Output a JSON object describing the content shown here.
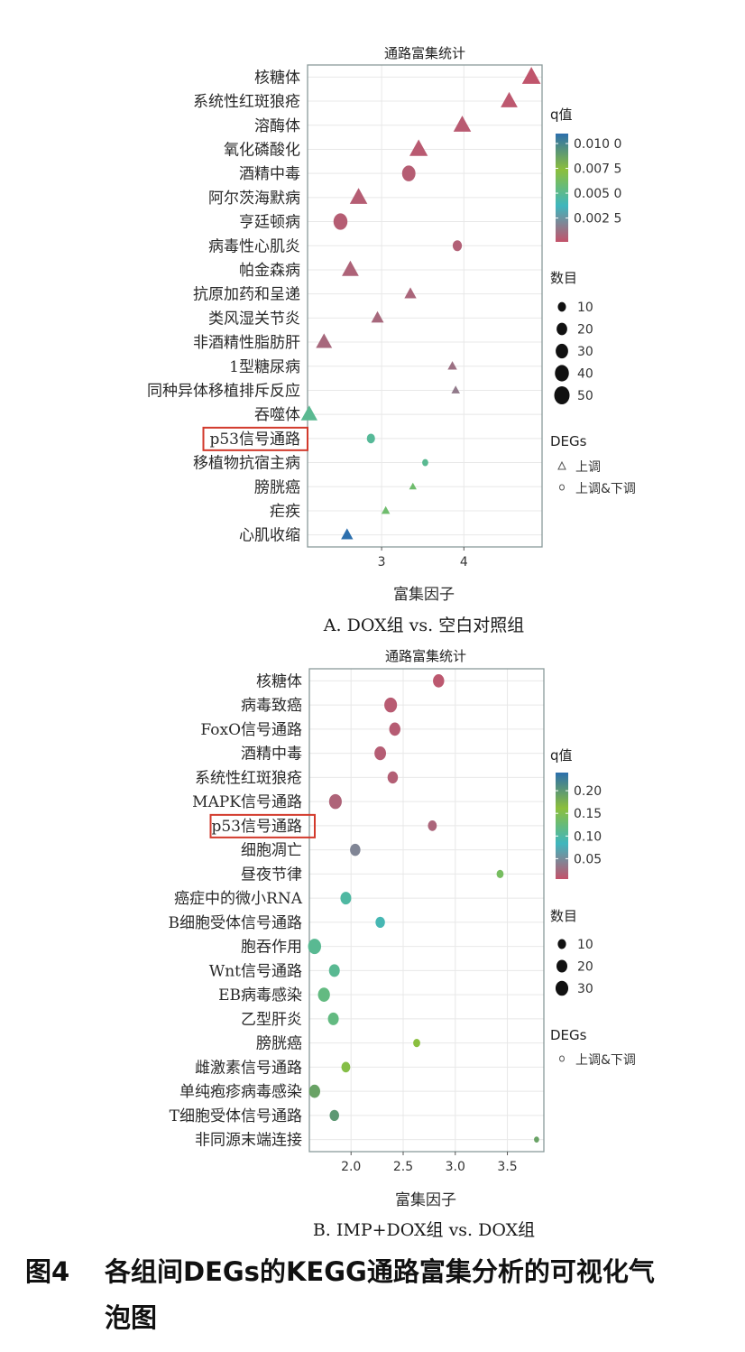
{
  "chart_data": [
    {
      "type": "scatter",
      "title": "通路富集统计",
      "xlabel": "富集因子",
      "caption": "A. DOX组 vs. 空白对照组",
      "xlim": [
        2.1,
        4.95
      ],
      "xticks": [
        3,
        4
      ],
      "categories": [
        "核糖体",
        "系统性红斑狼疮",
        "溶酶体",
        "氧化磷酸化",
        "酒精中毒",
        "阿尔茨海默病",
        "亨廷顿病",
        "病毒性心肌炎",
        "帕金森病",
        "抗原加药和呈递",
        "类风湿关节炎",
        "非酒精性脂肪肝",
        "1型糖尿病",
        "同种异体移植排斥反应",
        "吞噬体",
        "p53信号通路",
        "移植物抗宿主病",
        "膀胱癌",
        "疟疾",
        "心肌收缩"
      ],
      "points": [
        {
          "y": "核糖体",
          "x": 4.82,
          "count": 48,
          "q": 0.0002,
          "degs": "up"
        },
        {
          "y": "系统性红斑狼疮",
          "x": 4.55,
          "count": 38,
          "q": 0.0003,
          "degs": "up"
        },
        {
          "y": "溶酶体",
          "x": 3.98,
          "count": 42,
          "q": 0.0004,
          "degs": "up"
        },
        {
          "y": "氧化磷酸化",
          "x": 3.45,
          "count": 46,
          "q": 0.0004,
          "degs": "up"
        },
        {
          "y": "酒精中毒",
          "x": 3.33,
          "count": 36,
          "q": 0.0005,
          "degs": "updown"
        },
        {
          "y": "阿尔茨海默病",
          "x": 2.72,
          "count": 42,
          "q": 0.0005,
          "degs": "up"
        },
        {
          "y": "亨廷顿病",
          "x": 2.5,
          "count": 40,
          "q": 0.0005,
          "degs": "updown"
        },
        {
          "y": "病毒性心肌炎",
          "x": 3.92,
          "count": 14,
          "q": 0.0006,
          "degs": "updown"
        },
        {
          "y": "帕金森病",
          "x": 2.62,
          "count": 38,
          "q": 0.0007,
          "degs": "up"
        },
        {
          "y": "抗原加药和呈递",
          "x": 3.35,
          "count": 16,
          "q": 0.0008,
          "degs": "up"
        },
        {
          "y": "类风湿关节炎",
          "x": 2.95,
          "count": 18,
          "q": 0.0009,
          "degs": "up"
        },
        {
          "y": "非酒精性脂肪肝",
          "x": 2.3,
          "count": 34,
          "q": 0.0009,
          "degs": "up"
        },
        {
          "y": "1型糖尿病",
          "x": 3.86,
          "count": 8,
          "q": 0.0012,
          "degs": "up"
        },
        {
          "y": "同种异体移植排斥反应",
          "x": 3.9,
          "count": 6,
          "q": 0.0015,
          "degs": "up"
        },
        {
          "y": "吞噬体",
          "x": 2.12,
          "count": 36,
          "q": 0.005,
          "degs": "up"
        },
        {
          "y": "p53信号通路",
          "x": 2.87,
          "count": 10,
          "q": 0.0048,
          "degs": "updown"
        },
        {
          "y": "移植物抗宿主病",
          "x": 3.53,
          "count": 4,
          "q": 0.005,
          "degs": "updown"
        },
        {
          "y": "膀胱癌",
          "x": 3.38,
          "count": 4,
          "q": 0.006,
          "degs": "up"
        },
        {
          "y": "疟疾",
          "x": 3.05,
          "count": 6,
          "q": 0.006,
          "degs": "up"
        },
        {
          "y": "心肌收缩",
          "x": 2.58,
          "count": 16,
          "q": 0.011,
          "degs": "up"
        }
      ],
      "highlight": "p53信号通路",
      "q_legend": {
        "title": "q值",
        "ticks": [
          "0.010 0",
          "0.007 5",
          "0.005 0",
          "0.002 5"
        ],
        "tick_values": [
          0.01,
          0.0075,
          0.005,
          0.0025
        ],
        "range": [
          0.0001,
          0.011
        ]
      },
      "size_legend": {
        "title": "数目",
        "labels": [
          "10",
          "20",
          "30",
          "40",
          "50"
        ],
        "values": [
          10,
          20,
          30,
          40,
          50
        ]
      },
      "degs_legend": {
        "title": "DEGs",
        "items": [
          "上调",
          "上调&下调"
        ]
      }
    },
    {
      "type": "scatter",
      "title": "通路富集统计",
      "xlabel": "富集因子",
      "caption": "B. IMP+DOX组 vs. DOX组",
      "xlim": [
        1.6,
        3.85
      ],
      "xticks": [
        2.0,
        2.5,
        3.0,
        3.5
      ],
      "xtick_labels": [
        "2.0",
        "2.5",
        "3.0",
        "3.5"
      ],
      "categories": [
        "核糖体",
        "病毒致癌",
        "FoxO信号通路",
        "酒精中毒",
        "系统性红斑狼疮",
        "MAPK信号通路",
        "p53信号通路",
        "细胞凋亡",
        "昼夜节律",
        "癌症中的微小RNA",
        "B细胞受体信号通路",
        "胞吞作用",
        "Wnt信号通路",
        "EB病毒感染",
        "乙型肝炎",
        "膀胱癌",
        "雌激素信号通路",
        "单纯疱疹病毒感染",
        "T细胞受体信号通路",
        "非同源末端连接"
      ],
      "points": [
        {
          "y": "核糖体",
          "x": 2.84,
          "count": 22,
          "q": 0.01,
          "degs": "updown"
        },
        {
          "y": "病毒致癌",
          "x": 2.38,
          "count": 30,
          "q": 0.012,
          "degs": "updown"
        },
        {
          "y": "FoxO信号通路",
          "x": 2.42,
          "count": 22,
          "q": 0.013,
          "degs": "updown"
        },
        {
          "y": "酒精中毒",
          "x": 2.28,
          "count": 24,
          "q": 0.014,
          "degs": "updown"
        },
        {
          "y": "系统性红斑狼疮",
          "x": 2.4,
          "count": 18,
          "q": 0.015,
          "degs": "updown"
        },
        {
          "y": "MAPK信号通路",
          "x": 1.85,
          "count": 30,
          "q": 0.018,
          "degs": "updown"
        },
        {
          "y": "p53信号通路",
          "x": 2.78,
          "count": 12,
          "q": 0.02,
          "degs": "updown"
        },
        {
          "y": "细胞凋亡",
          "x": 2.04,
          "count": 18,
          "q": 0.045,
          "degs": "updown"
        },
        {
          "y": "昼夜节律",
          "x": 3.43,
          "count": 6,
          "q": 0.14,
          "degs": "updown"
        },
        {
          "y": "癌症中的微小RNA",
          "x": 1.95,
          "count": 20,
          "q": 0.1,
          "degs": "updown"
        },
        {
          "y": "B细胞受体信号通路",
          "x": 2.28,
          "count": 14,
          "q": 0.09,
          "degs": "updown"
        },
        {
          "y": "胞吞作用",
          "x": 1.65,
          "count": 32,
          "q": 0.11,
          "degs": "updown"
        },
        {
          "y": "Wnt信号通路",
          "x": 1.84,
          "count": 20,
          "q": 0.11,
          "degs": "updown"
        },
        {
          "y": "EB病毒感染",
          "x": 1.74,
          "count": 26,
          "q": 0.12,
          "degs": "updown"
        },
        {
          "y": "乙型肝炎",
          "x": 1.83,
          "count": 20,
          "q": 0.12,
          "degs": "updown"
        },
        {
          "y": "膀胱癌",
          "x": 2.63,
          "count": 6,
          "q": 0.16,
          "degs": "updown"
        },
        {
          "y": "雌激素信号通路",
          "x": 1.95,
          "count": 12,
          "q": 0.155,
          "degs": "updown"
        },
        {
          "y": "单纯疱疹病毒感染",
          "x": 1.65,
          "count": 22,
          "q": 0.19,
          "degs": "updown"
        },
        {
          "y": "T细胞受体信号通路",
          "x": 1.84,
          "count": 14,
          "q": 0.2,
          "degs": "updown"
        },
        {
          "y": "非同源末端连接",
          "x": 3.78,
          "count": 2,
          "q": 0.19,
          "degs": "updown"
        }
      ],
      "highlight": "p53信号通路",
      "q_legend": {
        "title": "q值",
        "ticks": [
          "0.20",
          "0.15",
          "0.10",
          "0.05"
        ],
        "tick_values": [
          0.2,
          0.15,
          0.1,
          0.05
        ],
        "range": [
          0.005,
          0.24
        ]
      },
      "size_legend": {
        "title": "数目",
        "labels": [
          "10",
          "20",
          "30"
        ],
        "values": [
          10,
          20,
          30
        ]
      },
      "degs_legend": {
        "title": "DEGs",
        "items": [
          "上调&下调"
        ]
      }
    }
  ],
  "figure_caption": {
    "number": "图4",
    "line1": "各组间DEGs的KEGG通路富集分析的可视化气",
    "line2": "泡图"
  },
  "colors": {
    "scale": [
      "#c4526a",
      "#3fb6be",
      "#8cbf3c",
      "#2c6fad"
    ],
    "highlight_box": "#d23a2c",
    "panel_border": "#8a9a9a",
    "grid": "#e8e8e8"
  }
}
